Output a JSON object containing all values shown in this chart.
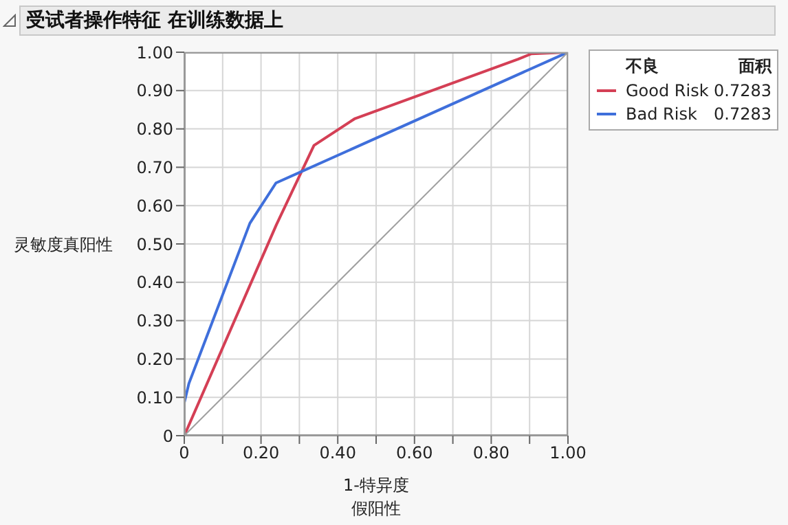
{
  "chart_data": {
    "type": "line",
    "title": "受试者操作特征 在训练数据上",
    "xlabel": "1-特异度",
    "ylabel": "灵敏度真阳性",
    "legend_title": "不良",
    "legend": "right",
    "grid": true,
    "marker": "none",
    "line_style": "solid",
    "annotations": [
      "面积",
      "0.7283",
      "0.7283",
      "假阳性"
    ],
    "xlim": [
      0,
      1
    ],
    "ylim": [
      0,
      1
    ],
    "xticks": [
      0,
      {
        "value": 0.1,
        "label": null
      },
      {
        "value": 0.2,
        "label": "0.20"
      },
      {
        "value": 0.3,
        "label": null
      },
      {
        "value": 0.4,
        "label": "0.40"
      },
      {
        "value": 0.5,
        "label": null
      },
      {
        "value": 0.6,
        "label": "0.60"
      },
      {
        "value": 0.7,
        "label": null
      },
      {
        "value": 0.8,
        "label": "0.80"
      },
      {
        "value": 0.9,
        "label": null
      },
      {
        "value": 1,
        "label": "1.00"
      }
    ],
    "yticks": [
      0,
      {
        "value": 0.1,
        "label": "0.10"
      },
      {
        "value": 0.2,
        "label": "0.20"
      },
      {
        "value": 0.3,
        "label": "0.30"
      },
      {
        "value": 0.4,
        "label": "0.40"
      },
      {
        "value": 0.5,
        "label": "0.50"
      },
      {
        "value": 0.6,
        "label": "0.60"
      },
      {
        "value": 0.7,
        "label": "0.70"
      },
      {
        "value": 0.8,
        "label": "0.80"
      },
      {
        "value": 0.9,
        "label": "0.90"
      },
      {
        "value": 1,
        "label": "1.00"
      }
    ],
    "series": [
      {
        "name": "Good Risk",
        "color": "#d43f55",
        "x": [
          0,
          0.24,
          0.338,
          0.445,
          0.87,
          0.905,
          1
        ],
        "values": [
          0,
          0.55,
          0.757,
          0.827,
          0.982,
          0.996,
          1
        ]
      },
      {
        "name": "Bad Risk",
        "color": "#3f6fdb",
        "x": [
          0,
          0,
          0.012,
          0.171,
          0.239,
          1
        ],
        "values": [
          0,
          0.086,
          0.136,
          0.554,
          0.659,
          1
        ]
      },
      {
        "color": "#a0a0a0",
        "x": [
          0,
          1
        ],
        "values": [
          0,
          1
        ]
      }
    ]
  }
}
